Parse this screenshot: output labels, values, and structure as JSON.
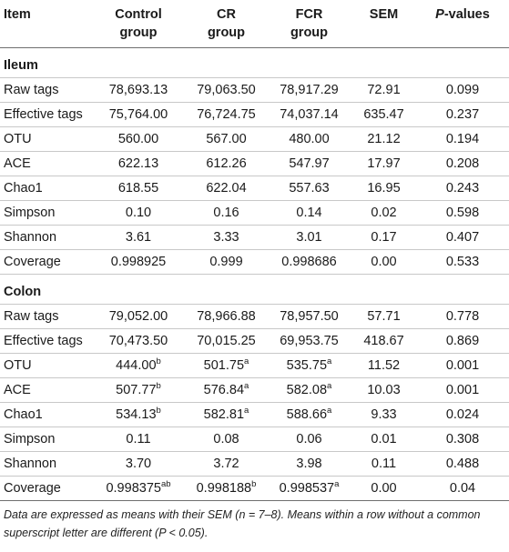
{
  "header": {
    "item": "Item",
    "control": [
      "Control",
      "group"
    ],
    "cr": [
      "CR",
      "group"
    ],
    "fcr": [
      "FCR",
      "group"
    ],
    "sem": "SEM",
    "p_italic": "P",
    "p_rest": "-values"
  },
  "sections": [
    {
      "title": "Ileum",
      "rows": [
        {
          "label": "Raw tags",
          "cells": [
            {
              "v": "78,693.13"
            },
            {
              "v": "79,063.50"
            },
            {
              "v": "78,917.29"
            },
            {
              "v": "72.91"
            },
            {
              "v": "0.099"
            }
          ]
        },
        {
          "label": "Effective tags",
          "cells": [
            {
              "v": "75,764.00"
            },
            {
              "v": "76,724.75"
            },
            {
              "v": "74,037.14"
            },
            {
              "v": "635.47"
            },
            {
              "v": "0.237"
            }
          ]
        },
        {
          "label": "OTU",
          "cells": [
            {
              "v": "560.00"
            },
            {
              "v": "567.00"
            },
            {
              "v": "480.00"
            },
            {
              "v": "21.12"
            },
            {
              "v": "0.194"
            }
          ]
        },
        {
          "label": "ACE",
          "cells": [
            {
              "v": "622.13"
            },
            {
              "v": "612.26"
            },
            {
              "v": "547.97"
            },
            {
              "v": "17.97"
            },
            {
              "v": "0.208"
            }
          ]
        },
        {
          "label": "Chao1",
          "cells": [
            {
              "v": "618.55"
            },
            {
              "v": "622.04"
            },
            {
              "v": "557.63"
            },
            {
              "v": "16.95"
            },
            {
              "v": "0.243"
            }
          ]
        },
        {
          "label": "Simpson",
          "cells": [
            {
              "v": "0.10"
            },
            {
              "v": "0.16"
            },
            {
              "v": "0.14"
            },
            {
              "v": "0.02"
            },
            {
              "v": "0.598"
            }
          ]
        },
        {
          "label": "Shannon",
          "cells": [
            {
              "v": "3.61"
            },
            {
              "v": "3.33"
            },
            {
              "v": "3.01"
            },
            {
              "v": "0.17"
            },
            {
              "v": "0.407"
            }
          ]
        },
        {
          "label": "Coverage",
          "cells": [
            {
              "v": "0.998925"
            },
            {
              "v": "0.999"
            },
            {
              "v": "0.998686"
            },
            {
              "v": "0.00"
            },
            {
              "v": "0.533"
            }
          ]
        }
      ]
    },
    {
      "title": "Colon",
      "rows": [
        {
          "label": "Raw tags",
          "cells": [
            {
              "v": "79,052.00"
            },
            {
              "v": "78,966.88"
            },
            {
              "v": "78,957.50"
            },
            {
              "v": "57.71"
            },
            {
              "v": "0.778"
            }
          ]
        },
        {
          "label": "Effective tags",
          "cells": [
            {
              "v": "70,473.50"
            },
            {
              "v": "70,015.25"
            },
            {
              "v": "69,953.75"
            },
            {
              "v": "418.67"
            },
            {
              "v": "0.869"
            }
          ]
        },
        {
          "label": "OTU",
          "cells": [
            {
              "v": "444.00",
              "sup": "b"
            },
            {
              "v": "501.75",
              "sup": "a"
            },
            {
              "v": "535.75",
              "sup": "a"
            },
            {
              "v": "11.52"
            },
            {
              "v": "0.001"
            }
          ]
        },
        {
          "label": "ACE",
          "cells": [
            {
              "v": "507.77",
              "sup": "b"
            },
            {
              "v": "576.84",
              "sup": "a"
            },
            {
              "v": "582.08",
              "sup": "a"
            },
            {
              "v": "10.03"
            },
            {
              "v": "0.001"
            }
          ]
        },
        {
          "label": "Chao1",
          "cells": [
            {
              "v": "534.13",
              "sup": "b"
            },
            {
              "v": "582.81",
              "sup": "a"
            },
            {
              "v": "588.66",
              "sup": "a"
            },
            {
              "v": "9.33"
            },
            {
              "v": "0.024"
            }
          ]
        },
        {
          "label": "Simpson",
          "cells": [
            {
              "v": "0.11"
            },
            {
              "v": "0.08"
            },
            {
              "v": "0.06"
            },
            {
              "v": "0.01"
            },
            {
              "v": "0.308"
            }
          ]
        },
        {
          "label": "Shannon",
          "cells": [
            {
              "v": "3.70"
            },
            {
              "v": "3.72"
            },
            {
              "v": "3.98"
            },
            {
              "v": "0.11"
            },
            {
              "v": "0.488"
            }
          ]
        },
        {
          "label": "Coverage",
          "cells": [
            {
              "v": "0.998375",
              "sup": "ab"
            },
            {
              "v": "0.998188",
              "sup": "b"
            },
            {
              "v": "0.998537",
              "sup": "a"
            },
            {
              "v": "0.00"
            },
            {
              "v": "0.04"
            }
          ]
        }
      ]
    }
  ],
  "footnote": "Data are expressed as means with their SEM (n = 7–8). Means within a row without a common superscript letter are different (P < 0.05)."
}
